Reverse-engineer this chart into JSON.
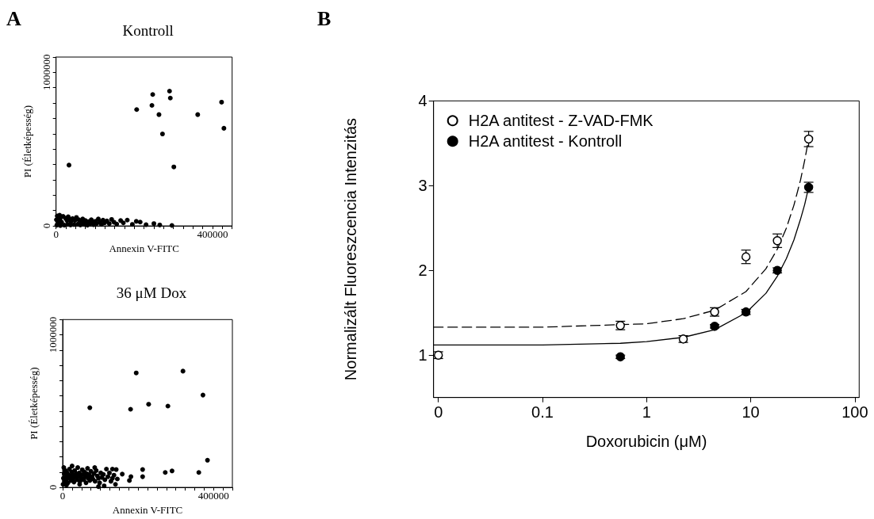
{
  "chart_data": [
    {
      "type": "scatter",
      "title": "Kontroll",
      "xlabel": "Annexin V-FITC",
      "ylabel": "PI (Életképesség)",
      "annotations": [
        "A"
      ],
      "marker": "circle",
      "xlim": [
        0,
        450000
      ],
      "ylim": [
        0,
        1100000
      ],
      "xticks": [
        0,
        {
          "value": 25000,
          "label": null
        },
        {
          "value": 50000,
          "label": null
        },
        {
          "value": 75000,
          "label": null
        },
        {
          "value": 100000,
          "label": null
        },
        {
          "value": 125000,
          "label": null
        },
        {
          "value": 150000,
          "label": null
        },
        {
          "value": 175000,
          "label": null
        },
        {
          "value": 200000,
          "label": null
        },
        {
          "value": 225000,
          "label": null
        },
        {
          "value": 250000,
          "label": null
        },
        {
          "value": 275000,
          "label": null
        },
        {
          "value": 300000,
          "label": null
        },
        {
          "value": 325000,
          "label": null
        },
        {
          "value": 350000,
          "label": null
        },
        {
          "value": 375000,
          "label": null
        },
        400000,
        {
          "value": 425000,
          "label": null
        },
        {
          "value": 450000,
          "label": null
        }
      ],
      "yticks": [
        0,
        {
          "value": 100000,
          "label": null
        },
        {
          "value": 200000,
          "label": null
        },
        {
          "value": 300000,
          "label": null
        },
        {
          "value": 400000,
          "label": null
        },
        {
          "value": 500000,
          "label": null
        },
        {
          "value": 600000,
          "label": null
        },
        {
          "value": 700000,
          "label": null
        },
        {
          "value": 800000,
          "label": null
        },
        {
          "value": 900000,
          "label": null
        },
        1000000,
        {
          "value": 1100000,
          "label": null
        }
      ],
      "series": [
        {
          "color": "#000000",
          "x": [
            206000,
            247000,
            245000,
            290000,
            292000,
            263000,
            272000,
            362000,
            423000,
            429000,
            33000,
            301000,
            2000,
            4000,
            6000,
            10000,
            14000,
            21000,
            24000,
            28000,
            30000,
            31000,
            35000,
            37000,
            38000,
            42000,
            46000,
            48000,
            52000,
            56000,
            58000,
            62000,
            64000,
            68000,
            70000,
            72000,
            75000,
            78000,
            80000,
            83000,
            86000,
            90000,
            93000,
            96000,
            100000,
            104000,
            108000,
            112000,
            116000,
            120000,
            124000,
            130000,
            136000,
            142000,
            148000,
            155000,
            165000,
            172000,
            182000,
            195000,
            205000,
            215000,
            230000,
            250000,
            265000,
            3000,
            9000,
            18000,
            1000,
            11000,
            296000
          ],
          "values": [
            758000,
            856000,
            785000,
            878000,
            833000,
            725000,
            599000,
            725000,
            806000,
            636000,
            396000,
            384000,
            5000,
            12000,
            30000,
            45000,
            25000,
            5000,
            50000,
            35000,
            10000,
            60000,
            42000,
            6000,
            30000,
            48000,
            9000,
            36000,
            55000,
            12000,
            40000,
            6000,
            32000,
            45000,
            24000,
            10000,
            35000,
            18000,
            5000,
            28000,
            14000,
            40000,
            22000,
            8000,
            30000,
            16000,
            45000,
            25000,
            10000,
            38000,
            20000,
            32000,
            15000,
            42000,
            24000,
            12000,
            35000,
            20000,
            38000,
            10000,
            30000,
            25000,
            8000,
            15000,
            6000,
            65000,
            70000,
            62000,
            40000,
            2000,
            3000
          ]
        }
      ]
    },
    {
      "type": "scatter",
      "title": "36 μM Dox",
      "xlabel": "Annexin V-FITC",
      "ylabel": "PI (Életképesség)",
      "marker": "circle",
      "xlim": [
        0,
        450000
      ],
      "ylim": [
        0,
        1100000
      ],
      "xticks": [
        0,
        {
          "value": 25000,
          "label": null
        },
        {
          "value": 50000,
          "label": null
        },
        {
          "value": 75000,
          "label": null
        },
        {
          "value": 100000,
          "label": null
        },
        {
          "value": 125000,
          "label": null
        },
        {
          "value": 150000,
          "label": null
        },
        {
          "value": 175000,
          "label": null
        },
        {
          "value": 200000,
          "label": null
        },
        {
          "value": 225000,
          "label": null
        },
        {
          "value": 250000,
          "label": null
        },
        {
          "value": 275000,
          "label": null
        },
        {
          "value": 300000,
          "label": null
        },
        {
          "value": 325000,
          "label": null
        },
        {
          "value": 350000,
          "label": null
        },
        {
          "value": 375000,
          "label": null
        },
        400000,
        {
          "value": 425000,
          "label": null
        },
        {
          "value": 450000,
          "label": null
        }
      ],
      "yticks": [
        0,
        {
          "value": 100000,
          "label": null
        },
        {
          "value": 200000,
          "label": null
        },
        {
          "value": 300000,
          "label": null
        },
        {
          "value": 400000,
          "label": null
        },
        {
          "value": 500000,
          "label": null
        },
        {
          "value": 600000,
          "label": null
        },
        {
          "value": 700000,
          "label": null
        },
        {
          "value": 800000,
          "label": null
        },
        {
          "value": 900000,
          "label": null
        },
        1000000,
        {
          "value": 1100000,
          "label": null
        }
      ],
      "series": [
        {
          "color": "#000000",
          "x": [
            72000,
            195000,
            180000,
            228000,
            279000,
            319000,
            372000,
            384000,
            361000,
            290000,
            272000,
            212000,
            212000,
            177000,
            181000,
            158000,
            142000,
            132000,
            2000,
            4000,
            5000,
            7000,
            9000,
            11000,
            12000,
            14000,
            16000,
            18000,
            20000,
            22000,
            24000,
            26000,
            28000,
            30000,
            32000,
            34000,
            36000,
            38000,
            40000,
            42000,
            44000,
            46000,
            48000,
            50000,
            52000,
            54000,
            56000,
            58000,
            60000,
            62000,
            64000,
            66000,
            68000,
            70000,
            72000,
            75000,
            78000,
            80000,
            83000,
            86000,
            89000,
            92000,
            95000,
            98000,
            101000,
            104000,
            108000,
            112000,
            116000,
            120000,
            124000,
            128000,
            132000,
            136000,
            140000,
            145000,
            1000,
            3000,
            10000,
            25000,
            45000,
            85000,
            110000,
            95000
          ],
          "values": [
            522000,
            750000,
            512000,
            545000,
            533000,
            762000,
            605000,
            178000,
            98000,
            108000,
            98000,
            117000,
            70000,
            45000,
            70000,
            87000,
            117000,
            120000,
            60000,
            90000,
            40000,
            110000,
            75000,
            55000,
            95000,
            30000,
            80000,
            120000,
            65000,
            45000,
            100000,
            85000,
            60000,
            35000,
            110000,
            75000,
            90000,
            50000,
            130000,
            70000,
            95000,
            40000,
            80000,
            60000,
            115000,
            85000,
            50000,
            100000,
            70000,
            30000,
            90000,
            125000,
            60000,
            80000,
            45000,
            105000,
            70000,
            55000,
            90000,
            40000,
            110000,
            75000,
            60000,
            30000,
            95000,
            65000,
            85000,
            50000,
            120000,
            70000,
            95000,
            40000,
            60000,
            80000,
            20000,
            55000,
            20000,
            130000,
            15000,
            140000,
            20000,
            130000,
            10000,
            5000
          ]
        }
      ]
    },
    {
      "type": "scatter",
      "xlabel": "Doxorubicin (μM)",
      "ylabel": "Normalizált Fluoreszcencia Intenzitás",
      "annotations": [
        "B"
      ],
      "log": "x",
      "legend": "top left",
      "marker": "circle",
      "xlim": [
        0.009,
        110
      ],
      "ylim": [
        0.5,
        4
      ],
      "xticks": [
        {
          "value": 0.01,
          "label": "0"
        },
        0.1,
        1,
        10,
        100
      ],
      "yticks": [
        1,
        2,
        3,
        4
      ],
      "series": [
        {
          "type": "line",
          "color": "#000000",
          "line_style": "dashed",
          "marker": "none",
          "x": [
            0.009,
            0.1,
            0.56,
            1,
            2.25,
            4.5,
            9,
            14,
            18,
            22,
            26,
            30,
            33,
            36
          ],
          "values": [
            1.33,
            1.33,
            1.36,
            1.37,
            1.43,
            1.53,
            1.75,
            2.02,
            2.25,
            2.5,
            2.77,
            3.06,
            3.3,
            3.55
          ]
        },
        {
          "type": "line",
          "color": "#000000",
          "line_style": "solid",
          "marker": "none",
          "x": [
            0.009,
            0.1,
            0.56,
            1,
            2.25,
            4.5,
            9,
            14,
            18,
            22,
            26,
            30,
            33,
            36
          ],
          "values": [
            1.12,
            1.12,
            1.14,
            1.16,
            1.21,
            1.3,
            1.5,
            1.73,
            1.93,
            2.14,
            2.36,
            2.6,
            2.78,
            2.98
          ]
        },
        {
          "name": "H2A antitest - Z-VAD-FMK",
          "color": "#ffffff",
          "x": [
            0.01,
            0.56,
            2.25,
            4.5,
            9,
            18,
            36
          ],
          "values": [
            1.0,
            1.35,
            1.19,
            1.51,
            2.16,
            2.35,
            3.55
          ],
          "errors": [
            0.04,
            0.05,
            0.04,
            0.05,
            0.08,
            0.08,
            0.09
          ]
        },
        {
          "name": "H2A antitest - Kontroll",
          "color": "#000000",
          "x": [
            0.56,
            4.5,
            9,
            18,
            36
          ],
          "values": [
            0.98,
            1.34,
            1.51,
            2.0,
            2.98
          ],
          "errors": [
            0.02,
            0.02,
            0.03,
            0.03,
            0.06
          ]
        }
      ]
    }
  ]
}
